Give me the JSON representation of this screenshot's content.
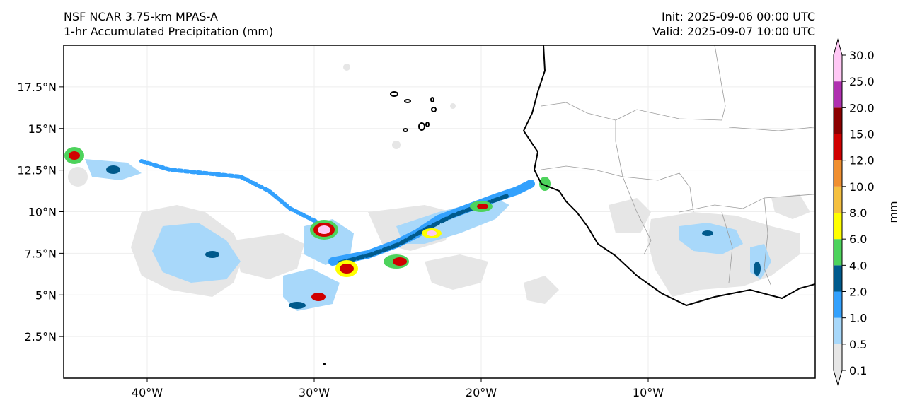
{
  "header": {
    "model": "NSF NCAR 3.75-km MPAS-A",
    "field": "1-hr Accumulated Precipitation (mm)",
    "init": "Init: 2025-09-06 00:00 UTC",
    "valid": "Valid: 2025-09-07 10:00 UTC"
  },
  "map": {
    "lon_range": [
      -45,
      0
    ],
    "lat_range": [
      0,
      20
    ],
    "lat_ticks": [
      {
        "value": 2.5,
        "label": "2.5°N"
      },
      {
        "value": 5,
        "label": "5°N"
      },
      {
        "value": 7.5,
        "label": "7.5°N"
      },
      {
        "value": 10,
        "label": "10°N"
      },
      {
        "value": 12.5,
        "label": "12.5°N"
      },
      {
        "value": 15,
        "label": "15°N"
      },
      {
        "value": 17.5,
        "label": "17.5°N"
      }
    ],
    "lon_ticks": [
      {
        "value": -40,
        "label": "40°W"
      },
      {
        "value": -30,
        "label": "30°W"
      },
      {
        "value": -20,
        "label": "20°W"
      },
      {
        "value": -10,
        "label": "10°W"
      }
    ],
    "gridlines": true
  },
  "colorbar": {
    "unit_label": "mm",
    "levels": [
      "0.1",
      "0.5",
      "1.0",
      "2.0",
      "4.0",
      "6.0",
      "8.0",
      "10.0",
      "12.0",
      "15.0",
      "20.0",
      "25.0",
      "30.0"
    ],
    "colors": [
      "#e6e6e6",
      "#a8d8fa",
      "#33a1fd",
      "#005a8c",
      "#4dd35c",
      "#ffff00",
      "#f5c040",
      "#f08f30",
      "#d00000",
      "#8b0000",
      "#b030b0",
      "#ffc8f5"
    ]
  }
}
